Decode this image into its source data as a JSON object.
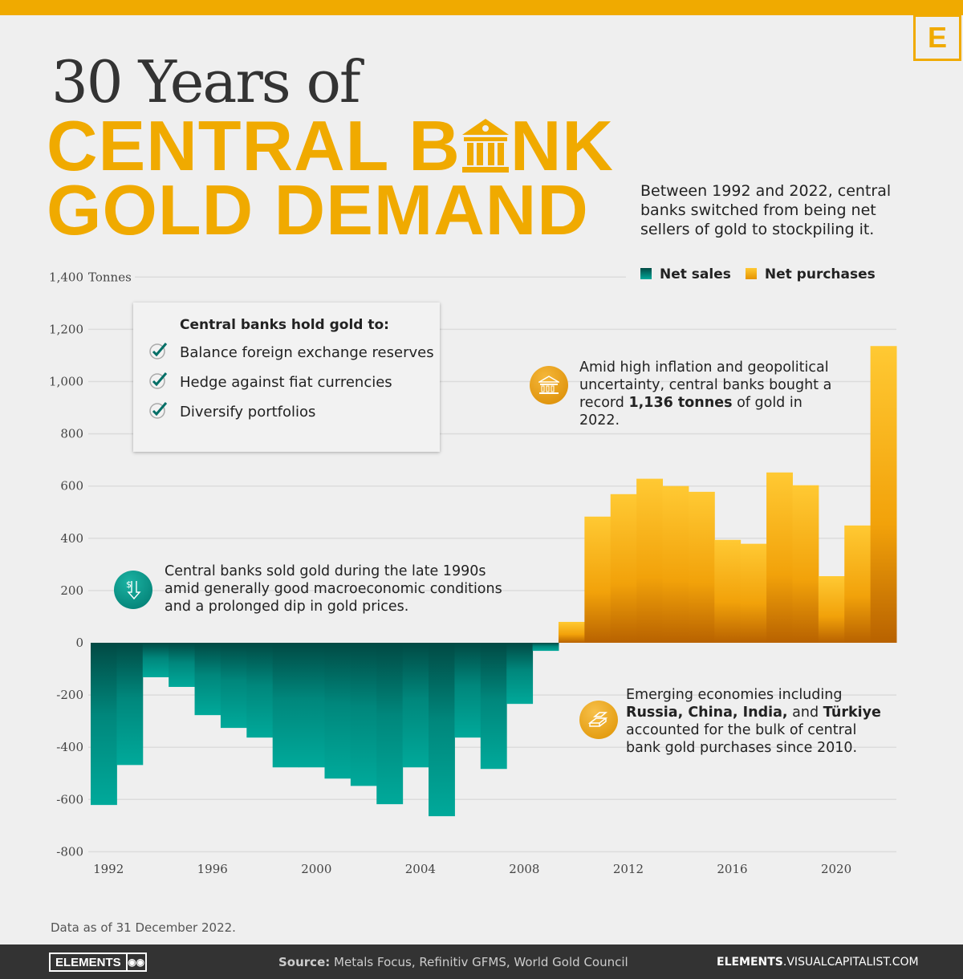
{
  "header": {
    "title_line1": "30 Years of",
    "title_line2_a": "CENTRAL B",
    "title_line2_b": "NK",
    "title_line3": "GOLD DEMAND",
    "logo": "E",
    "intro": "Between 1992 and 2022, central banks switched from being net sellers of gold to stockpiling it."
  },
  "legend": [
    {
      "label": "Net sales",
      "color": "#00897b"
    },
    {
      "label": "Net purchases",
      "color": "#f5b014"
    }
  ],
  "infobox": {
    "title": "Central banks hold gold to:",
    "items": [
      "Balance foreign exchange reserves",
      "Hedge against fiat currencies",
      "Diversify portfolios"
    ]
  },
  "callouts": {
    "record": {
      "pre": "Amid high inflation and geopolitical uncertainty, central banks bought a record ",
      "bold": "1,136 tonnes",
      "post": " of gold in 2022.",
      "icon": "bank-icon"
    },
    "sales": {
      "text": "Central banks sold gold during the late 1990s amid generally good macroeconomic conditions and a prolonged dip in gold prices.",
      "icon": "money-down-icon"
    },
    "emerging": {
      "pre": "Emerging economies including ",
      "bold": "Russia, China, India,",
      "mid": " and ",
      "bold2": "Türkiye",
      "post": " accounted for the bulk of central bank gold purchases since 2010.",
      "icon": "gold-bars-icon"
    }
  },
  "chart_data": {
    "type": "bar",
    "ylabel": "Tonnes",
    "ylim": [
      -800,
      1400
    ],
    "yticks": [
      1400,
      1200,
      1000,
      800,
      600,
      400,
      200,
      0,
      -200,
      -400,
      -600,
      -800
    ],
    "ytick_labels": [
      "1,400",
      "1,200",
      "1,000",
      "800",
      "600",
      "400",
      "200",
      "0",
      "-200",
      "-400",
      "-600",
      "-800"
    ],
    "xtick_labels": [
      "1992",
      "1996",
      "2000",
      "2004",
      "2008",
      "2012",
      "2016",
      "2020"
    ],
    "categories": [
      1992,
      1993,
      1994,
      1995,
      1996,
      1997,
      1998,
      1999,
      2000,
      2001,
      2002,
      2003,
      2004,
      2005,
      2006,
      2007,
      2008,
      2009,
      2010,
      2011,
      2012,
      2013,
      2014,
      2015,
      2016,
      2017,
      2018,
      2019,
      2020,
      2021,
      2022
    ],
    "values": [
      -621,
      -468,
      -132,
      -169,
      -277,
      -326,
      -363,
      -477,
      -477,
      -520,
      -548,
      -618,
      -477,
      -664,
      -363,
      -483,
      -234,
      -31,
      80,
      483,
      569,
      628,
      600,
      578,
      394,
      379,
      652,
      603,
      255,
      449,
      1136
    ],
    "grid": true,
    "legend": "top-right"
  },
  "footer": {
    "note": "Data as of 31 December 2022.",
    "logo": "ELEMENTS",
    "source_label": "Source:",
    "source": " Metals Focus, Refinitiv GFMS, World Gold Council",
    "url_bold": "ELEMENTS",
    "url": ".VISUALCAPITALIST.COM"
  }
}
